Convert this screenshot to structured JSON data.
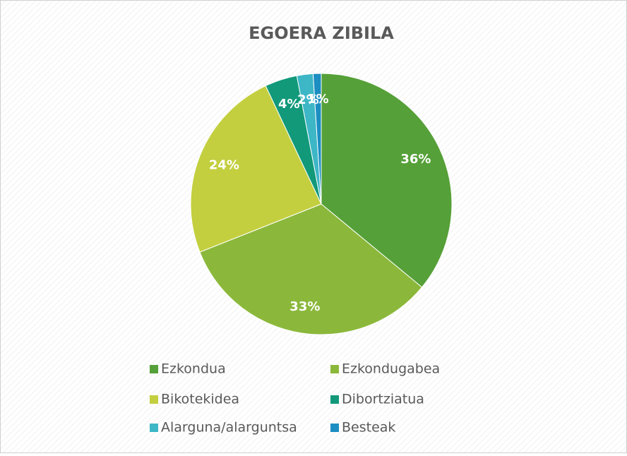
{
  "chart_data": {
    "type": "pie",
    "title": "EGOERA ZIBILA",
    "categories": [
      "Ezkondua",
      "Ezkondugabea",
      "Bikotekidea",
      "Dibortziatua",
      "Alarguna/alarguntsa",
      "Besteak"
    ],
    "values": [
      36,
      33,
      24,
      4,
      2,
      1
    ],
    "value_labels": [
      "36%",
      "33%",
      "24%",
      "4%",
      "2%",
      "1%"
    ],
    "colors": [
      "#55a038",
      "#8bb83b",
      "#c3cf3f",
      "#11997a",
      "#3db6c6",
      "#1c8ec2"
    ],
    "legend": "bottom"
  }
}
